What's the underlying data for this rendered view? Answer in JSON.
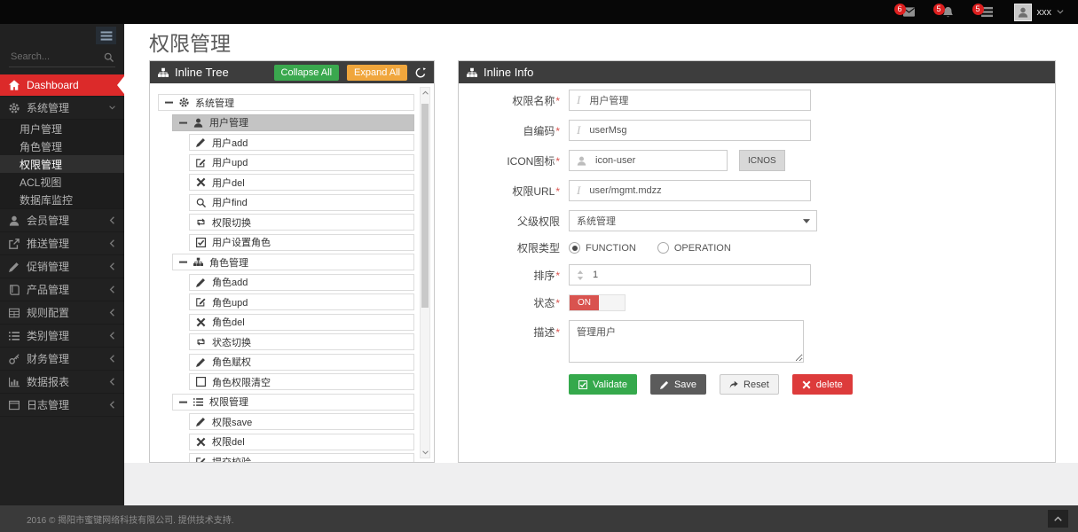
{
  "navbar": {
    "username": "xxx",
    "badges": [
      {
        "icon": "envelope",
        "count": "6"
      },
      {
        "icon": "bell",
        "count": "5"
      },
      {
        "icon": "tasks",
        "count": "5"
      }
    ]
  },
  "sidebar": {
    "search_placeholder": "Search...",
    "items": [
      {
        "label": "Dashboard",
        "icon": "home",
        "dashboard": true
      },
      {
        "label": "系统管理",
        "icon": "gears",
        "chevron": "down",
        "children": [
          {
            "label": "用户管理"
          },
          {
            "label": "角色管理"
          },
          {
            "label": "权限管理",
            "active": true
          },
          {
            "label": "ACL视图"
          },
          {
            "label": "数据库监控"
          }
        ]
      },
      {
        "label": "会员管理",
        "icon": "user",
        "chevron": "left"
      },
      {
        "label": "推送管理",
        "icon": "share",
        "chevron": "left"
      },
      {
        "label": "促销管理",
        "icon": "pencil",
        "chevron": "left"
      },
      {
        "label": "产品管理",
        "icon": "book",
        "chevron": "left"
      },
      {
        "label": "规则配置",
        "icon": "table",
        "chevron": "left"
      },
      {
        "label": "类别管理",
        "icon": "list",
        "chevron": "left"
      },
      {
        "label": "财务管理",
        "icon": "key",
        "chevron": "left"
      },
      {
        "label": "数据报表",
        "icon": "chart",
        "chevron": "left"
      },
      {
        "label": "日志管理",
        "icon": "window",
        "chevron": "left"
      }
    ]
  },
  "page_title": "权限管理",
  "tree_panel": {
    "title": "Inline Tree",
    "collapse_all_label": "Collapse All",
    "expand_all_label": "Expand All",
    "rows": [
      {
        "label": "系统管理",
        "icon": "gears",
        "level": 0,
        "toggle": true
      },
      {
        "label": "用户管理",
        "icon": "user",
        "level": 1,
        "toggle": true,
        "selected": true
      },
      {
        "label": "用户add",
        "icon": "pencil",
        "level": 2
      },
      {
        "label": "用户upd",
        "icon": "edit",
        "level": 2
      },
      {
        "label": "用户del",
        "icon": "x",
        "level": 2
      },
      {
        "label": "用户find",
        "icon": "search",
        "level": 2
      },
      {
        "label": "权限切换",
        "icon": "retweet",
        "level": 2
      },
      {
        "label": "用户设置角色",
        "icon": "check-square",
        "level": 2
      },
      {
        "label": "角色管理",
        "icon": "sitemap",
        "level": 1,
        "toggle": true
      },
      {
        "label": "角色add",
        "icon": "pencil",
        "level": 2
      },
      {
        "label": "角色upd",
        "icon": "edit",
        "level": 2
      },
      {
        "label": "角色del",
        "icon": "x",
        "level": 2
      },
      {
        "label": "状态切换",
        "icon": "retweet",
        "level": 2
      },
      {
        "label": "角色赋权",
        "icon": "pencil",
        "level": 2
      },
      {
        "label": "角色权限清空",
        "icon": "square",
        "level": 2
      },
      {
        "label": "权限管理",
        "icon": "list",
        "level": 1,
        "toggle": true
      },
      {
        "label": "权限save",
        "icon": "pencil",
        "level": 2
      },
      {
        "label": "权限del",
        "icon": "x",
        "level": 2
      },
      {
        "label": "提交校验",
        "icon": "edit",
        "level": 2
      }
    ]
  },
  "info_panel": {
    "title": "Inline Info",
    "form": {
      "name_label": "权限名称",
      "name_value": "用户管理",
      "code_label": "自编码",
      "code_value": "userMsg",
      "icon_label": "ICON图标",
      "icon_value": "icon-user",
      "icnos_button": "ICNOS",
      "url_label": "权限URL",
      "url_value": "user/mgmt.mdzz",
      "parent_label": "父级权限",
      "parent_value": "系统管理",
      "type_label": "权限类型",
      "type_options": [
        "FUNCTION",
        "OPERATION"
      ],
      "type_selected": "FUNCTION",
      "order_label": "排序",
      "order_value": "1",
      "status_label": "状态",
      "status_value": "ON",
      "desc_label": "描述",
      "desc_value": "管理用户",
      "buttons": {
        "validate": "Validate",
        "save": "Save",
        "reset": "Reset",
        "delete": "delete"
      }
    }
  },
  "footer": {
    "copyright": "2016 © 揭阳市蜜键网络科技有限公司. 提供技术支持."
  }
}
